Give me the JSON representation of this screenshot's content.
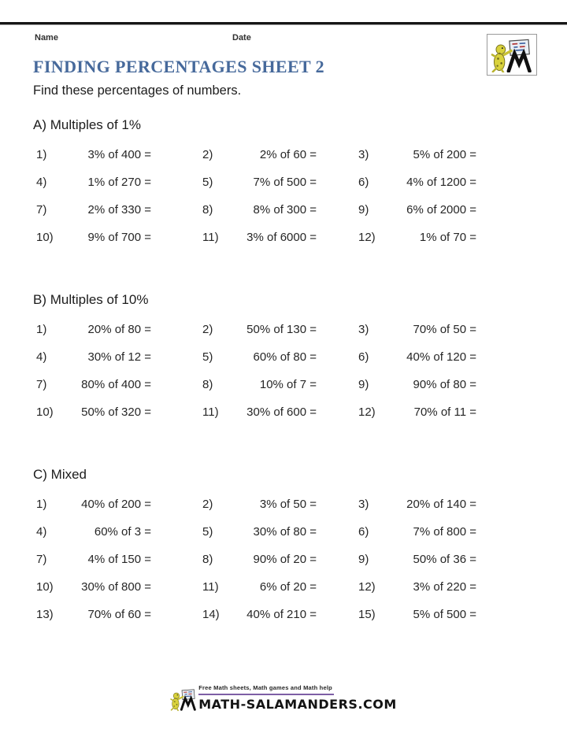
{
  "header": {
    "name_label": "Name",
    "date_label": "Date",
    "title": "FINDING PERCENTAGES SHEET 2",
    "subtitle": "Find these percentages of numbers."
  },
  "sections": [
    {
      "heading": "A) Multiples of 1%",
      "problems": [
        {
          "num": "1)",
          "text": "3% of 400 ="
        },
        {
          "num": "2)",
          "text": "2% of 60 ="
        },
        {
          "num": "3)",
          "text": "5% of 200 ="
        },
        {
          "num": "4)",
          "text": "1% of 270 ="
        },
        {
          "num": "5)",
          "text": "7% of 500 ="
        },
        {
          "num": "6)",
          "text": "4% of 1200 ="
        },
        {
          "num": "7)",
          "text": "2% of 330 ="
        },
        {
          "num": "8)",
          "text": "8% of 300 ="
        },
        {
          "num": "9)",
          "text": "6% of 2000 ="
        },
        {
          "num": "10)",
          "text": "9% of 700 ="
        },
        {
          "num": "11)",
          "text": "3% of 6000 ="
        },
        {
          "num": "12)",
          "text": "1% of 70 ="
        }
      ]
    },
    {
      "heading": "B) Multiples of 10%",
      "problems": [
        {
          "num": "1)",
          "text": "20% of 80 ="
        },
        {
          "num": "2)",
          "text": "50% of 130 ="
        },
        {
          "num": "3)",
          "text": "70% of 50 ="
        },
        {
          "num": "4)",
          "text": "30% of 12 ="
        },
        {
          "num": "5)",
          "text": "60% of 80 ="
        },
        {
          "num": "6)",
          "text": "40% of 120 ="
        },
        {
          "num": "7)",
          "text": "80% of 400 ="
        },
        {
          "num": "8)",
          "text": "10% of 7 ="
        },
        {
          "num": "9)",
          "text": "90% of 80 ="
        },
        {
          "num": "10)",
          "text": "50% of 320 ="
        },
        {
          "num": "11)",
          "text": "30% of 600 ="
        },
        {
          "num": "12)",
          "text": "70% of 11 ="
        }
      ]
    },
    {
      "heading": "C) Mixed",
      "problems": [
        {
          "num": "1)",
          "text": "40% of 200 ="
        },
        {
          "num": "2)",
          "text": "3% of 50 ="
        },
        {
          "num": "3)",
          "text": "20% of 140 ="
        },
        {
          "num": "4)",
          "text": "60% of 3 ="
        },
        {
          "num": "5)",
          "text": "30% of 80 ="
        },
        {
          "num": "6)",
          "text": "7% of 800 ="
        },
        {
          "num": "7)",
          "text": "4% of 150 ="
        },
        {
          "num": "8)",
          "text": "90% of 20 ="
        },
        {
          "num": "9)",
          "text": "50% of 36 ="
        },
        {
          "num": "10)",
          "text": "30% of 800 ="
        },
        {
          "num": "11)",
          "text": "6% of 20 ="
        },
        {
          "num": "12)",
          "text": "3% of 220 ="
        },
        {
          "num": "13)",
          "text": "70% of 60 ="
        },
        {
          "num": "14)",
          "text": "40% of 210 ="
        },
        {
          "num": "15)",
          "text": "5% of 500 ="
        }
      ]
    }
  ],
  "footer": {
    "tagline": "Free Math sheets, Math games and Math help",
    "site": "MATH-SALAMANDERS.COM"
  },
  "logo": {
    "name": "math-salamanders-logo"
  },
  "colors": {
    "title_blue": "#46699b",
    "footer_purple": "#7e5fa5",
    "text": "#262626",
    "salamander_yellow": "#d9d23c"
  }
}
